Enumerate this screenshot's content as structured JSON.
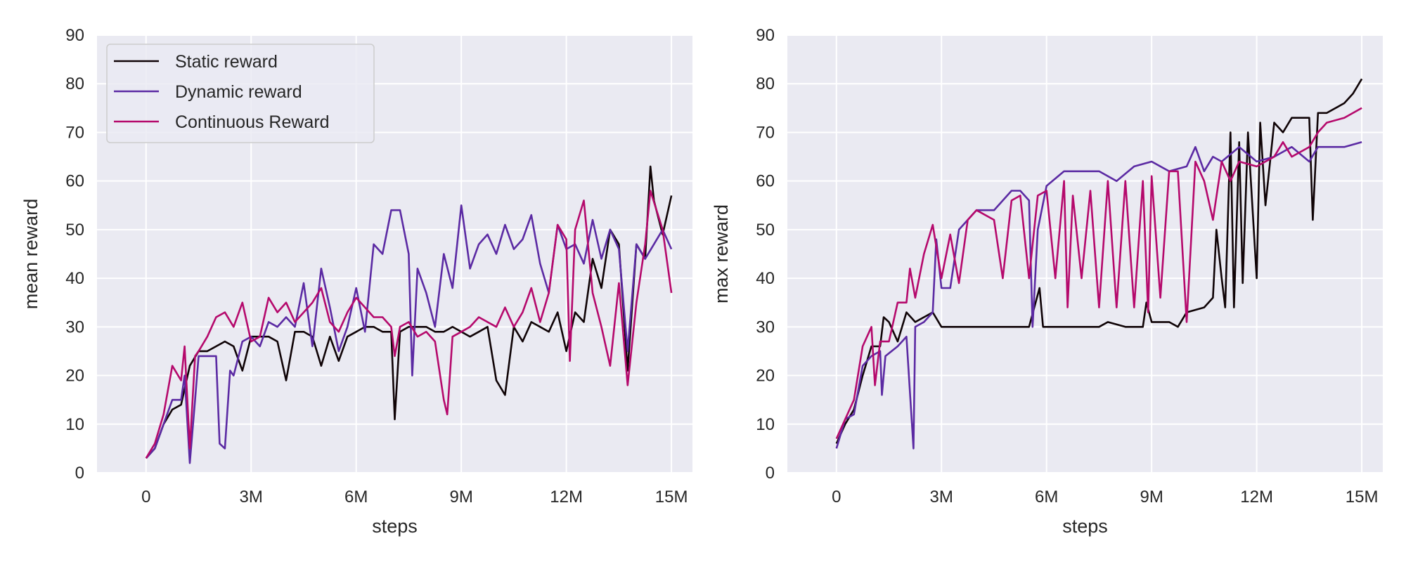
{
  "chart_data": [
    {
      "type": "line",
      "xlabel": "steps",
      "ylabel": "mean reward",
      "xlim": [
        -1.4,
        15.6
      ],
      "ylim": [
        0,
        90
      ],
      "xticks": [
        0,
        3,
        6,
        9,
        12,
        15
      ],
      "xtick_labels": [
        "0",
        "3M",
        "6M",
        "9M",
        "12M",
        "15M"
      ],
      "yticks": [
        0,
        10,
        20,
        30,
        40,
        50,
        60,
        70,
        80,
        90
      ],
      "ytick_labels": [
        "0",
        "10",
        "20",
        "30",
        "40",
        "50",
        "60",
        "70",
        "80",
        "90"
      ],
      "grid": true,
      "legend": "top-left",
      "series": [
        {
          "name": "Static reward",
          "color": "#0f0306",
          "x": [
            0,
            0.25,
            0.5,
            0.75,
            1,
            1.25,
            1.5,
            1.75,
            2,
            2.25,
            2.5,
            2.75,
            3,
            3.25,
            3.5,
            3.75,
            4,
            4.25,
            4.5,
            4.75,
            5,
            5.25,
            5.5,
            5.75,
            6,
            6.25,
            6.5,
            6.75,
            7,
            7.1,
            7.25,
            7.5,
            7.75,
            8,
            8.25,
            8.5,
            8.75,
            9,
            9.25,
            9.5,
            9.75,
            10,
            10.25,
            10.5,
            10.75,
            11,
            11.25,
            11.5,
            11.75,
            12,
            12.25,
            12.5,
            12.75,
            13,
            13.25,
            13.5,
            13.75,
            14,
            14.25,
            14.4,
            14.5,
            14.75,
            15
          ],
          "y": [
            3,
            5,
            10,
            13,
            14,
            22,
            25,
            25,
            26,
            27,
            26,
            21,
            28,
            28,
            28,
            27,
            19,
            29,
            29,
            28,
            22,
            28,
            23,
            28,
            29,
            30,
            30,
            29,
            29,
            11,
            29,
            30,
            30,
            30,
            29,
            29,
            30,
            29,
            28,
            29,
            30,
            19,
            16,
            30,
            27,
            31,
            30,
            29,
            33,
            25,
            33,
            31,
            44,
            38,
            50,
            47,
            21,
            47,
            44,
            63,
            56,
            49,
            57
          ]
        },
        {
          "name": "Dynamic reward",
          "color": "#5b2aa3",
          "x": [
            0,
            0.25,
            0.5,
            0.75,
            1,
            1.1,
            1.25,
            1.4,
            1.5,
            1.75,
            2,
            2.1,
            2.25,
            2.4,
            2.5,
            2.75,
            3,
            3.25,
            3.5,
            3.75,
            4,
            4.25,
            4.5,
            4.75,
            5,
            5.25,
            5.5,
            5.75,
            6,
            6.25,
            6.5,
            6.75,
            7,
            7.25,
            7.5,
            7.6,
            7.75,
            8,
            8.25,
            8.5,
            8.75,
            9,
            9.25,
            9.5,
            9.75,
            10,
            10.25,
            10.5,
            10.75,
            11,
            11.25,
            11.5,
            11.75,
            12,
            12.25,
            12.5,
            12.75,
            13,
            13.25,
            13.5,
            13.75,
            14,
            14.25,
            14.5,
            14.75,
            15
          ],
          "y": [
            3,
            5,
            10,
            15,
            15,
            20,
            2,
            15,
            24,
            24,
            24,
            6,
            5,
            21,
            20,
            27,
            28,
            26,
            31,
            30,
            32,
            30,
            39,
            26,
            42,
            34,
            25,
            30,
            38,
            29,
            47,
            45,
            54,
            54,
            45,
            20,
            42,
            37,
            30,
            45,
            38,
            55,
            42,
            47,
            49,
            45,
            51,
            46,
            48,
            53,
            43,
            37,
            51,
            46,
            47,
            43,
            52,
            44,
            50,
            46,
            25,
            47,
            44,
            47,
            50,
            46
          ]
        },
        {
          "name": "Continuous Reward",
          "color": "#b5096c",
          "x": [
            0,
            0.25,
            0.5,
            0.75,
            1,
            1.1,
            1.25,
            1.4,
            1.5,
            1.75,
            2,
            2.25,
            2.5,
            2.75,
            3,
            3.25,
            3.5,
            3.75,
            4,
            4.25,
            4.5,
            4.75,
            5,
            5.25,
            5.5,
            5.75,
            6,
            6.25,
            6.5,
            6.75,
            7,
            7.1,
            7.25,
            7.5,
            7.75,
            8,
            8.25,
            8.5,
            8.6,
            8.75,
            9,
            9.25,
            9.5,
            9.75,
            10,
            10.25,
            10.5,
            10.75,
            11,
            11.25,
            11.5,
            11.75,
            12,
            12.1,
            12.25,
            12.5,
            12.75,
            13,
            13.25,
            13.5,
            13.75,
            14,
            14.25,
            14.4,
            14.75,
            15
          ],
          "y": [
            3,
            6,
            12,
            22,
            19,
            26,
            5,
            24,
            25,
            28,
            32,
            33,
            30,
            35,
            27,
            28,
            36,
            33,
            35,
            31,
            33,
            35,
            38,
            31,
            29,
            33,
            36,
            34,
            32,
            32,
            30,
            24,
            30,
            31,
            28,
            29,
            27,
            15,
            12,
            28,
            29,
            30,
            32,
            31,
            30,
            34,
            30,
            33,
            38,
            31,
            37,
            51,
            48,
            23,
            50,
            56,
            37,
            30,
            22,
            39,
            18,
            35,
            47,
            58,
            50,
            37
          ]
        }
      ]
    },
    {
      "type": "line",
      "xlabel": "steps",
      "ylabel": "max reward",
      "xlim": [
        -1.4,
        15.6
      ],
      "ylim": [
        0,
        90
      ],
      "xticks": [
        0,
        3,
        6,
        9,
        12,
        15
      ],
      "xtick_labels": [
        "0",
        "3M",
        "6M",
        "9M",
        "12M",
        "15M"
      ],
      "yticks": [
        0,
        10,
        20,
        30,
        40,
        50,
        60,
        70,
        80,
        90
      ],
      "ytick_labels": [
        "0",
        "10",
        "20",
        "30",
        "40",
        "50",
        "60",
        "70",
        "80",
        "90"
      ],
      "grid": true,
      "series": [
        {
          "color": "#0f0306",
          "x": [
            0,
            0.25,
            0.5,
            0.75,
            1,
            1.25,
            1.35,
            1.5,
            1.75,
            2,
            2.25,
            2.5,
            2.75,
            3,
            3.5,
            4,
            5,
            5.5,
            5.8,
            5.9,
            6.5,
            7.5,
            7.75,
            8.25,
            8.75,
            8.85,
            9,
            9.5,
            9.75,
            10,
            10.5,
            10.75,
            10.85,
            11,
            11.1,
            11.25,
            11.35,
            11.5,
            11.6,
            11.75,
            12,
            12.1,
            12.25,
            12.5,
            12.75,
            13,
            13.25,
            13.5,
            13.6,
            13.75,
            14,
            14.5,
            14.75,
            15
          ],
          "y": [
            6,
            10,
            13,
            20,
            26,
            26,
            32,
            31,
            27,
            33,
            31,
            32,
            33,
            30,
            30,
            30,
            30,
            30,
            38,
            30,
            30,
            30,
            31,
            30,
            30,
            35,
            31,
            31,
            30,
            33,
            34,
            36,
            50,
            40,
            34,
            70,
            34,
            68,
            39,
            70,
            40,
            72,
            55,
            72,
            70,
            73,
            73,
            73,
            52,
            74,
            74,
            76,
            78,
            81
          ]
        },
        {
          "color": "#5b2aa3",
          "x": [
            0,
            0.25,
            0.5,
            0.75,
            1,
            1.25,
            1.3,
            1.4,
            1.75,
            2,
            2.2,
            2.25,
            2.5,
            2.75,
            2.85,
            3,
            3.25,
            3.5,
            3.75,
            4,
            4.5,
            5,
            5.25,
            5.5,
            5.6,
            5.75,
            6,
            6.5,
            7,
            7.5,
            8,
            8.5,
            9,
            9.5,
            10,
            10.25,
            10.5,
            10.75,
            11,
            11.5,
            12,
            12.5,
            12.75,
            13,
            13.5,
            13.75,
            14,
            14.5,
            15
          ],
          "y": [
            5,
            11,
            12,
            22,
            24,
            25,
            16,
            24,
            26,
            28,
            5,
            30,
            31,
            33,
            48,
            38,
            38,
            50,
            52,
            54,
            54,
            58,
            58,
            56,
            30,
            50,
            59,
            62,
            62,
            62,
            60,
            63,
            64,
            62,
            63,
            67,
            62,
            65,
            64,
            67,
            64,
            65,
            66,
            67,
            64,
            67,
            67,
            67,
            68
          ]
        },
        {
          "color": "#b5096c",
          "x": [
            0,
            0.25,
            0.5,
            0.75,
            1,
            1.1,
            1.25,
            1.5,
            1.75,
            2,
            2.1,
            2.25,
            2.5,
            2.75,
            3,
            3.25,
            3.5,
            3.75,
            4,
            4.5,
            4.75,
            5,
            5.25,
            5.5,
            5.75,
            6,
            6.25,
            6.5,
            6.6,
            6.75,
            7,
            7.25,
            7.5,
            7.75,
            8,
            8.25,
            8.5,
            8.75,
            8.9,
            9,
            9.25,
            9.5,
            9.75,
            10,
            10.25,
            10.5,
            10.75,
            11,
            11.25,
            11.5,
            12,
            12.5,
            12.75,
            13,
            13.5,
            13.75,
            14,
            14.5,
            15
          ],
          "y": [
            7,
            11,
            15,
            26,
            30,
            18,
            27,
            27,
            35,
            35,
            42,
            36,
            45,
            51,
            40,
            49,
            39,
            52,
            54,
            52,
            40,
            56,
            57,
            40,
            57,
            58,
            40,
            60,
            34,
            57,
            40,
            58,
            34,
            60,
            34,
            60,
            34,
            60,
            33,
            61,
            36,
            62,
            62,
            31,
            64,
            60,
            52,
            64,
            60,
            64,
            63,
            65,
            68,
            65,
            67,
            70,
            72,
            73,
            75
          ]
        }
      ]
    }
  ]
}
